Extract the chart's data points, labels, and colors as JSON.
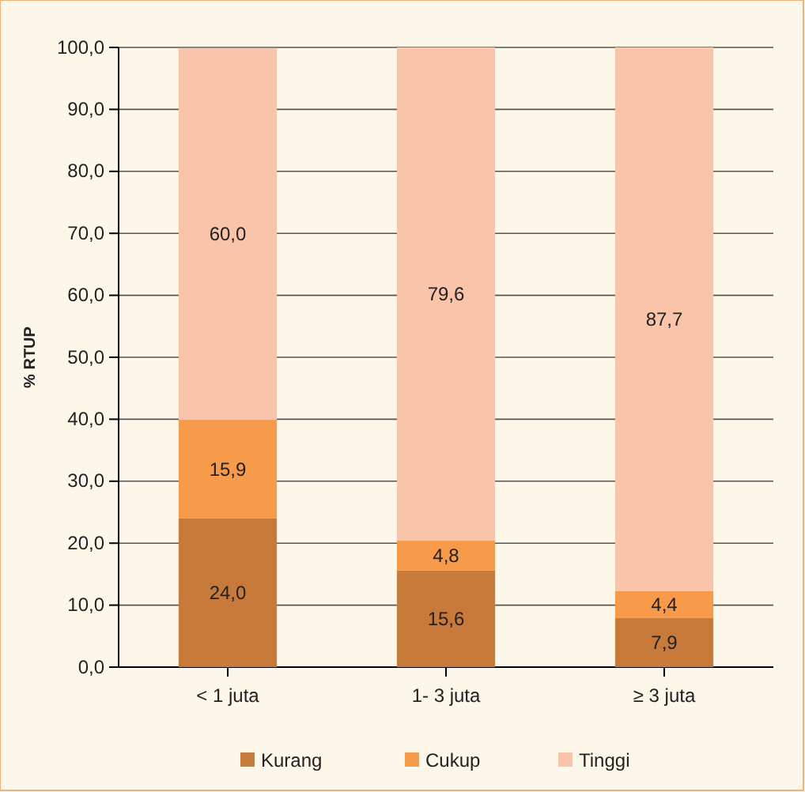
{
  "chart_data": {
    "type": "bar",
    "stacked": true,
    "ylabel": "% RTUP",
    "categories": [
      "< 1 juta",
      "1- 3 juta",
      "≥ 3 juta"
    ],
    "series": [
      {
        "name": "Kurang",
        "color": "#c77a3a",
        "values": [
          24.0,
          15.6,
          7.9
        ],
        "value_labels": [
          "24,0",
          "15,6",
          "7,9"
        ]
      },
      {
        "name": "Cukup",
        "color": "#f79a4a",
        "values": [
          15.9,
          4.8,
          4.4
        ],
        "value_labels": [
          "15,9",
          "4,8",
          "4,4"
        ]
      },
      {
        "name": "Tinggi",
        "color": "#fac4aa",
        "values": [
          60.0,
          79.6,
          87.7
        ],
        "value_labels": [
          "60,0",
          "79,6",
          "87,7"
        ]
      }
    ],
    "ylim": [
      0,
      100
    ],
    "yticks": [
      {
        "value": 0,
        "label": "0,0"
      },
      {
        "value": 10,
        "label": "10,0"
      },
      {
        "value": 20,
        "label": "20,0"
      },
      {
        "value": 30,
        "label": "30,0"
      },
      {
        "value": 40,
        "label": "40,0"
      },
      {
        "value": 50,
        "label": "50,0"
      },
      {
        "value": 60,
        "label": "60,0"
      },
      {
        "value": 70,
        "label": "70,0"
      },
      {
        "value": 80,
        "label": "80,0"
      },
      {
        "value": 90,
        "label": "90,0"
      },
      {
        "value": 100,
        "label": "100,0"
      }
    ],
    "grid": "y",
    "legend": "bottom"
  }
}
